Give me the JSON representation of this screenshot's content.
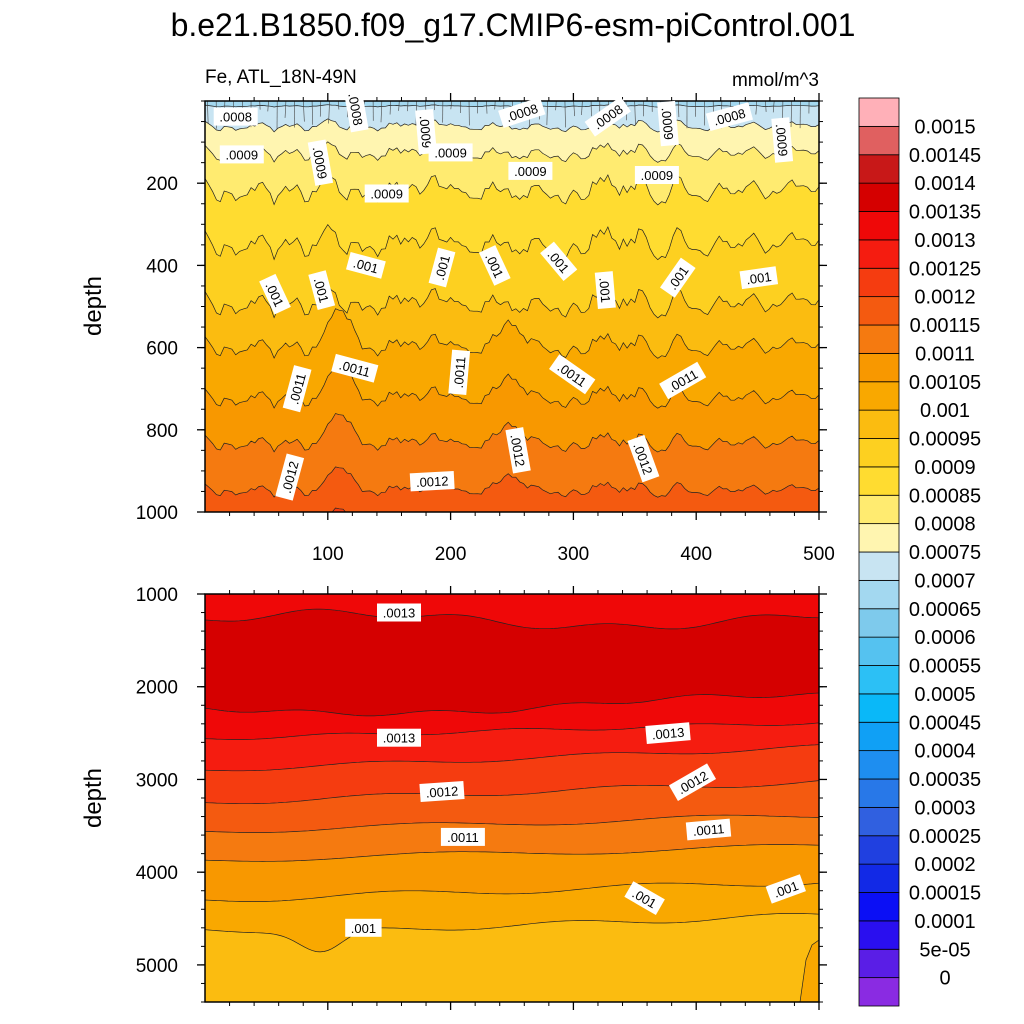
{
  "chart_data": {
    "type": "contour",
    "title": "b.e21.B1850.f09_g17.CMIP6-esm-piControl.001",
    "left_subtitle": "Fe, ATL_18N-49N",
    "right_subtitle": "mmol/m^3",
    "colorbar": {
      "levels": [
        "0",
        "5e-05",
        "0.0001",
        "0.00015",
        "0.0002",
        "0.00025",
        "0.0003",
        "0.00035",
        "0.0004",
        "0.00045",
        "0.0005",
        "0.00055",
        "0.0006",
        "0.00065",
        "0.0007",
        "0.00075",
        "0.0008",
        "0.00085",
        "0.0009",
        "0.00095",
        "0.001",
        "0.00105",
        "0.0011",
        "0.00115",
        "0.0012",
        "0.00125",
        "0.0013",
        "0.00135",
        "0.0014",
        "0.00145",
        "0.0015"
      ],
      "level_values": [
        0,
        5e-05,
        0.0001,
        0.00015,
        0.0002,
        0.00025,
        0.0003,
        0.00035,
        0.0004,
        0.00045,
        0.0005,
        0.00055,
        0.0006,
        0.00065,
        0.0007,
        0.00075,
        0.0008,
        0.00085,
        0.0009,
        0.00095,
        0.001,
        0.00105,
        0.0011,
        0.00115,
        0.0012,
        0.00125,
        0.0013,
        0.00135,
        0.0014,
        0.00145,
        0.0015
      ],
      "colors": [
        "#8a2be2",
        "#5a1ee6",
        "#2a0fef",
        "#0b0ff5",
        "#1229e6",
        "#2040e0",
        "#3060e0",
        "#2878e8",
        "#1e8ef0",
        "#10a0f5",
        "#0ab8f8",
        "#2cc0f5",
        "#55c2f0",
        "#7ecaec",
        "#a3d8f0",
        "#c8e4f2",
        "#fff5b0",
        "#ffeb70",
        "#ffdc30",
        "#fdd020",
        "#fbbc10",
        "#f9a800",
        "#f89800",
        "#f57a10",
        "#f45a10",
        "#f53c10",
        "#f51c10",
        "#ef0808",
        "#d50000",
        "#c81818",
        "#e06060",
        "#ffb0b8"
      ]
    },
    "upper_panel": {
      "xlim": [
        0,
        500
      ],
      "ylim": [
        1000,
        0
      ],
      "ylabel": "depth",
      "xticks": [
        "100",
        "200",
        "300",
        "400",
        "500"
      ],
      "yticks": [
        "200",
        "400",
        "600",
        "800",
        "1000"
      ],
      "contour_labels": [
        {
          "text": ".0008",
          "x": 25,
          "depth": 38,
          "angle": 0
        },
        {
          "text": ".0008",
          "x": 123,
          "depth": 20,
          "angle": 80
        },
        {
          "text": ".0008",
          "x": 258,
          "depth": 28,
          "angle": -18
        },
        {
          "text": ".0008",
          "x": 328,
          "depth": 38,
          "angle": -35
        },
        {
          "text": ".0009",
          "x": 377,
          "depth": 55,
          "angle": 85
        },
        {
          "text": ".0008",
          "x": 427,
          "depth": 38,
          "angle": -15
        },
        {
          "text": ".0009",
          "x": 470,
          "depth": 95,
          "angle": 85
        },
        {
          "text": ".0009",
          "x": 30,
          "depth": 130,
          "angle": 0
        },
        {
          "text": ".0009",
          "x": 94,
          "depth": 150,
          "angle": 80
        },
        {
          "text": ".0009",
          "x": 180,
          "depth": 75,
          "angle": 85
        },
        {
          "text": ".0009",
          "x": 200,
          "depth": 125,
          "angle": 0
        },
        {
          "text": ".0009",
          "x": 265,
          "depth": 170,
          "angle": 0
        },
        {
          "text": ".0009",
          "x": 368,
          "depth": 180,
          "angle": 0
        },
        {
          "text": ".0009",
          "x": 148,
          "depth": 225,
          "angle": 0
        },
        {
          "text": ".001",
          "x": 57,
          "depth": 470,
          "angle": 65
        },
        {
          "text": ".001",
          "x": 95,
          "depth": 460,
          "angle": 75
        },
        {
          "text": ".001",
          "x": 131,
          "depth": 400,
          "angle": 15
        },
        {
          "text": ".001",
          "x": 193,
          "depth": 405,
          "angle": -75
        },
        {
          "text": ".001",
          "x": 236,
          "depth": 400,
          "angle": 65
        },
        {
          "text": ".001",
          "x": 288,
          "depth": 390,
          "angle": 50
        },
        {
          "text": ".001",
          "x": 326,
          "depth": 460,
          "angle": 85
        },
        {
          "text": ".001",
          "x": 385,
          "depth": 430,
          "angle": -55
        },
        {
          "text": ".001",
          "x": 451,
          "depth": 430,
          "angle": -8
        },
        {
          "text": ".0011",
          "x": 75,
          "depth": 700,
          "angle": -75
        },
        {
          "text": ".0011",
          "x": 122,
          "depth": 650,
          "angle": 15
        },
        {
          "text": ".0011",
          "x": 207,
          "depth": 660,
          "angle": -85
        },
        {
          "text": ".0011",
          "x": 299,
          "depth": 665,
          "angle": 35
        },
        {
          "text": ".0011",
          "x": 389,
          "depth": 680,
          "angle": -30
        },
        {
          "text": ".0012",
          "x": 69,
          "depth": 915,
          "angle": -75
        },
        {
          "text": ".0012",
          "x": 185,
          "depth": 925,
          "angle": -3
        },
        {
          "text": ".0012",
          "x": 255,
          "depth": 850,
          "angle": 80
        },
        {
          "text": ".0012",
          "x": 357,
          "depth": 870,
          "angle": 70
        }
      ]
    },
    "lower_panel": {
      "xlim": [
        0,
        500
      ],
      "ylim": [
        5400,
        1000
      ],
      "ylabel": "depth",
      "yticks": [
        "1000",
        "2000",
        "3000",
        "4000",
        "5000"
      ],
      "contour_labels": [
        {
          "text": ".0013",
          "x": 158,
          "depth": 1200,
          "angle": 0
        },
        {
          "text": ".0013",
          "x": 158,
          "depth": 2550,
          "angle": 0
        },
        {
          "text": ".0013",
          "x": 377,
          "depth": 2500,
          "angle": -5
        },
        {
          "text": ".0012",
          "x": 193,
          "depth": 3130,
          "angle": -4
        },
        {
          "text": ".0012",
          "x": 397,
          "depth": 3030,
          "angle": -30
        },
        {
          "text": ".0011",
          "x": 210,
          "depth": 3620,
          "angle": 0
        },
        {
          "text": ".0011",
          "x": 410,
          "depth": 3540,
          "angle": -5
        },
        {
          "text": ".001",
          "x": 358,
          "depth": 4280,
          "angle": 30
        },
        {
          "text": ".001",
          "x": 473,
          "depth": 4180,
          "angle": -20
        },
        {
          "text": ".001",
          "x": 129,
          "depth": 4600,
          "angle": 0
        }
      ]
    }
  }
}
